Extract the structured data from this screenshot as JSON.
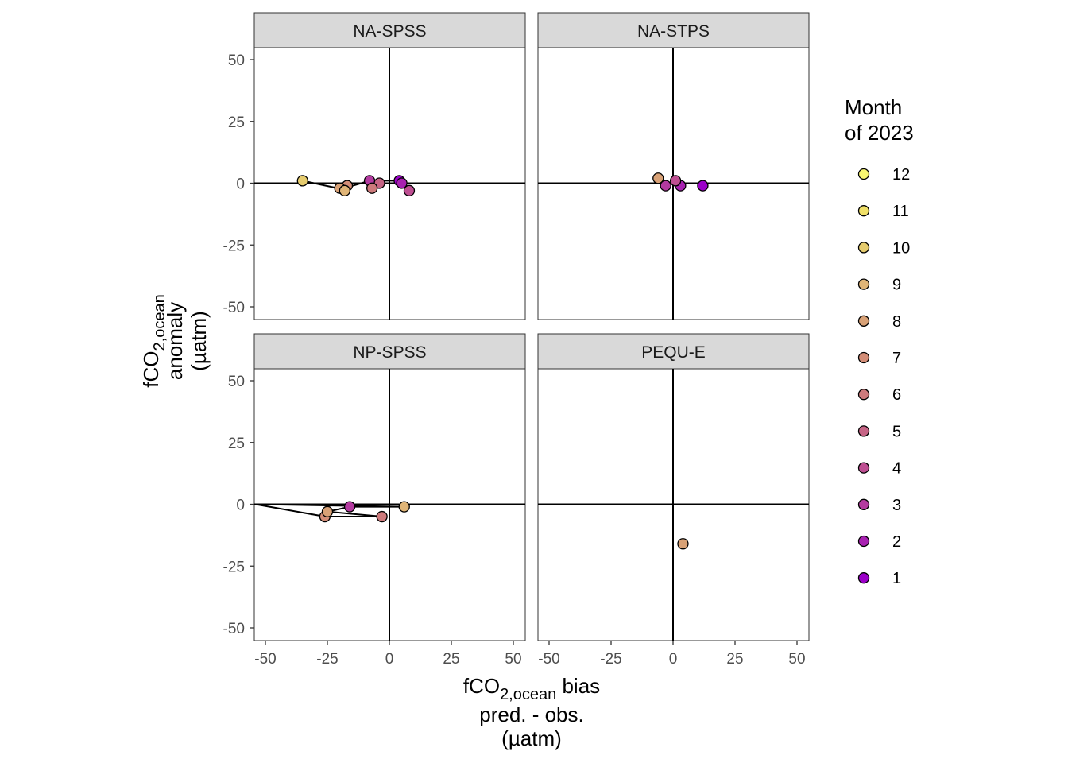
{
  "chart_data": {
    "type": "scatter",
    "facets": [
      "NA-SPSS",
      "NA-STPS",
      "NP-SPSS",
      "PEQU-E"
    ],
    "x_axis": {
      "title_main": "fCO",
      "title_sub": "2,ocean",
      "title_suffix": " bias",
      "title_line2": "pred. - obs.",
      "title_line3": "(µatm)",
      "ticks": [
        -50,
        -25,
        0,
        25,
        50
      ],
      "tick_labels": [
        "-50",
        "-25",
        "0",
        "25",
        "50"
      ],
      "xlim": [
        -54,
        55
      ]
    },
    "y_axis": {
      "title_main": "fCO",
      "title_sub": "2,ocean",
      "title_line2": "anomaly",
      "title_line3": "(µatm)",
      "ticks": [
        -50,
        -25,
        0,
        25,
        50
      ],
      "tick_labels": [
        "-50",
        "-25",
        "0",
        "25",
        "50"
      ],
      "ylim": [
        -55,
        55
      ]
    },
    "legend": {
      "title_line1": "Month",
      "title_line2": "of 2023",
      "position": "right",
      "items": [
        {
          "label": "12",
          "color": "#f9f871"
        },
        {
          "label": "11",
          "color": "#f0e068"
        },
        {
          "label": "10",
          "color": "#e6cc6e"
        },
        {
          "label": "9",
          "color": "#e0b577"
        },
        {
          "label": "8",
          "color": "#d8a176"
        },
        {
          "label": "7",
          "color": "#d38d77"
        },
        {
          "label": "6",
          "color": "#cd7a7c"
        },
        {
          "label": "5",
          "color": "#c66485"
        },
        {
          "label": "4",
          "color": "#be4f92"
        },
        {
          "label": "3",
          "color": "#b43aa0"
        },
        {
          "label": "2",
          "color": "#a821b1"
        },
        {
          "label": "1",
          "color": "#9b00c8"
        }
      ]
    },
    "panels": [
      {
        "name": "NA-SPSS",
        "points": [
          {
            "month": 1,
            "x": 4,
            "y": 1
          },
          {
            "month": 2,
            "x": 5,
            "y": 0
          },
          {
            "month": 3,
            "x": -8,
            "y": 1
          },
          {
            "month": 4,
            "x": 8,
            "y": -3
          },
          {
            "month": 5,
            "x": -4,
            "y": 0
          },
          {
            "month": 6,
            "x": -7,
            "y": -2
          },
          {
            "month": 7,
            "x": -17,
            "y": -1
          },
          {
            "month": 8,
            "x": -20,
            "y": -2
          },
          {
            "month": 9,
            "x": -18,
            "y": -3
          },
          {
            "month": 10,
            "x": -35,
            "y": 1
          }
        ]
      },
      {
        "name": "NA-STPS",
        "points": [
          {
            "month": 1,
            "x": 12,
            "y": -1
          },
          {
            "month": 2,
            "x": 3,
            "y": -1
          },
          {
            "month": 3,
            "x": -3,
            "y": -1
          },
          {
            "month": 4,
            "x": 1,
            "y": 1
          },
          {
            "month": 8,
            "x": -6,
            "y": 2
          }
        ]
      },
      {
        "name": "NP-SPSS",
        "points": [
          {
            "month": 3,
            "x": -16,
            "y": -1
          },
          {
            "month": 6,
            "x": -3,
            "y": -5
          },
          {
            "month": 7,
            "x": -26,
            "y": -5
          },
          {
            "month": 8,
            "x": -25,
            "y": -3
          },
          {
            "month": 9,
            "x": 6,
            "y": -1
          }
        ]
      },
      {
        "name": "PEQU-E",
        "points": [
          {
            "month": 8,
            "x": 4,
            "y": -16
          }
        ]
      }
    ],
    "paths": [
      {
        "panel": "NA-SPSS",
        "points": [
          [
            -35,
            1
          ],
          [
            -21,
            -2
          ],
          [
            -19,
            -2
          ],
          [
            -17,
            -1
          ],
          [
            -18,
            -2
          ],
          [
            -8,
            1
          ],
          [
            -4,
            1
          ],
          [
            4,
            1
          ],
          [
            5,
            0
          ],
          [
            8,
            -3
          ]
        ]
      },
      {
        "panel": "NP-SPSS",
        "points": [
          [
            -54,
            0
          ],
          [
            6,
            -1
          ],
          [
            -16,
            -1
          ],
          [
            -25,
            -3
          ],
          [
            -3,
            -5
          ],
          [
            -26,
            -5
          ],
          [
            -54,
            0
          ]
        ]
      }
    ]
  }
}
